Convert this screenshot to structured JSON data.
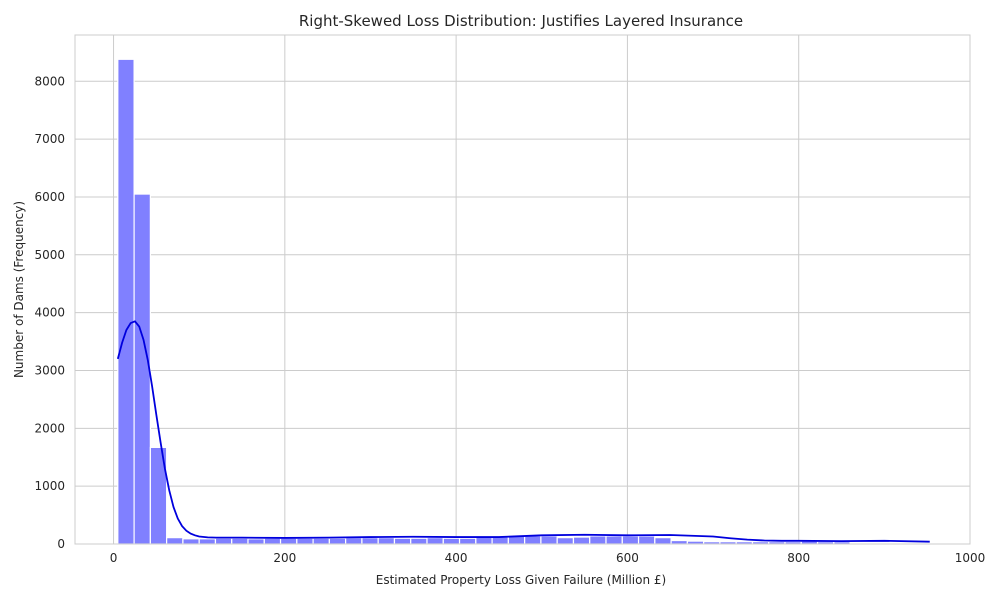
{
  "chart_data": {
    "type": "bar",
    "title": "Right-Skewed Loss Distribution: Justifies Layered Insurance",
    "xlabel": "Estimated Property Loss Given Failure (Million £)",
    "ylabel": "Number of Dams (Frequency)",
    "xlim": [
      -45,
      1000
    ],
    "ylim": [
      0,
      8800
    ],
    "x_ticks": [
      0,
      200,
      400,
      600,
      800,
      1000
    ],
    "y_ticks": [
      0,
      1000,
      2000,
      3000,
      4000,
      5000,
      6000,
      7000,
      8000
    ],
    "grid": true,
    "colors": {
      "bar_fill": "#8080ff",
      "bar_edge": "#ffffff",
      "kde_line": "#0000dd",
      "grid": "#cccccc",
      "frame": "#cccccc"
    },
    "bins": {
      "start": 5,
      "width": 19,
      "counts": [
        8380,
        6050,
        1670,
        110,
        90,
        90,
        100,
        100,
        90,
        100,
        100,
        100,
        100,
        100,
        110,
        110,
        110,
        100,
        100,
        110,
        100,
        100,
        120,
        130,
        140,
        140,
        140,
        110,
        120,
        140,
        140,
        140,
        140,
        110,
        60,
        50,
        40,
        40,
        40,
        40,
        40,
        40,
        50,
        40,
        40
      ]
    },
    "kde": {
      "x": [
        5,
        10,
        15,
        20,
        25,
        30,
        35,
        40,
        45,
        50,
        55,
        60,
        65,
        70,
        75,
        80,
        85,
        90,
        95,
        100,
        110,
        120,
        135,
        150,
        200,
        250,
        300,
        350,
        400,
        450,
        500,
        550,
        600,
        650,
        700,
        720,
        740,
        760,
        780,
        800,
        850,
        900,
        953
      ],
      "y": [
        3200,
        3480,
        3700,
        3820,
        3850,
        3760,
        3530,
        3180,
        2730,
        2230,
        1750,
        1300,
        930,
        640,
        440,
        310,
        230,
        180,
        150,
        130,
        115,
        110,
        110,
        110,
        105,
        110,
        120,
        125,
        120,
        120,
        150,
        160,
        150,
        155,
        130,
        100,
        75,
        60,
        55,
        55,
        50,
        55,
        40
      ]
    }
  }
}
